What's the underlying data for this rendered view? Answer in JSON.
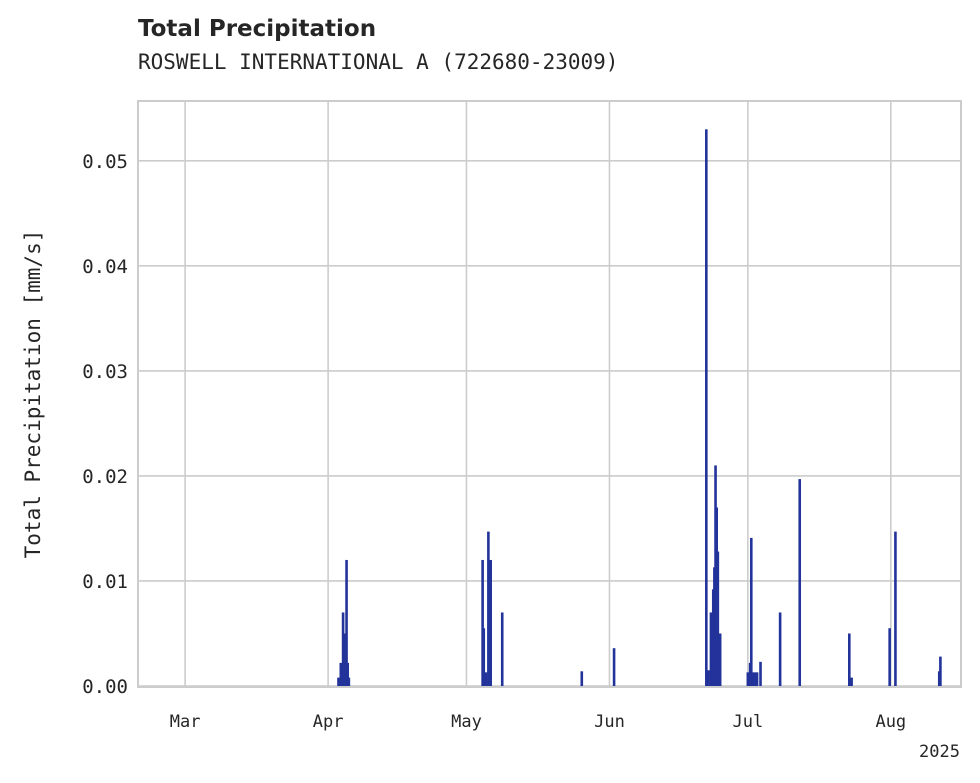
{
  "chart_data": {
    "type": "bar",
    "title": "Total Precipitation",
    "subtitle": "ROSWELL INTERNATIONAL A (722680-23009)",
    "ylabel": "Total Precipitation [mm/s]",
    "xlabel": "",
    "year_label": "2025",
    "ylim": [
      0,
      0.0556
    ],
    "xlim": [
      "2025-02-19",
      "2025-08-16"
    ],
    "yticks": [
      {
        "value": 0.0,
        "label": "0.00"
      },
      {
        "value": 0.01,
        "label": "0.01"
      },
      {
        "value": 0.02,
        "label": "0.02"
      },
      {
        "value": 0.03,
        "label": "0.03"
      },
      {
        "value": 0.04,
        "label": "0.04"
      },
      {
        "value": 0.05,
        "label": "0.05"
      }
    ],
    "xticks": [
      {
        "date": "2025-03-01",
        "label": "Mar"
      },
      {
        "date": "2025-04-01",
        "label": "Apr"
      },
      {
        "date": "2025-05-01",
        "label": "May"
      },
      {
        "date": "2025-06-01",
        "label": "Jun"
      },
      {
        "date": "2025-07-01",
        "label": "Jul"
      },
      {
        "date": "2025-08-01",
        "label": "Aug"
      }
    ],
    "grid": true,
    "color": "#22339a",
    "bars": [
      {
        "t": "2025-04-03T06:00",
        "v": 0.0008
      },
      {
        "t": "2025-04-03T18:00",
        "v": 0.0022
      },
      {
        "t": "2025-04-04T06:00",
        "v": 0.007
      },
      {
        "t": "2025-04-04T12:00",
        "v": 0.005
      },
      {
        "t": "2025-04-04T18:00",
        "v": 0.0022
      },
      {
        "t": "2025-04-05T00:00",
        "v": 0.012
      },
      {
        "t": "2025-04-05T06:00",
        "v": 0.0022
      },
      {
        "t": "2025-04-05T12:00",
        "v": 0.0008
      },
      {
        "t": "2025-05-04T12:00",
        "v": 0.012
      },
      {
        "t": "2025-05-04T18:00",
        "v": 0.0055
      },
      {
        "t": "2025-05-05T06:00",
        "v": 0.0013
      },
      {
        "t": "2025-05-05T18:00",
        "v": 0.0147
      },
      {
        "t": "2025-05-06T06:00",
        "v": 0.012
      },
      {
        "t": "2025-05-08T18:00",
        "v": 0.007
      },
      {
        "t": "2025-05-26T00:00",
        "v": 0.0014
      },
      {
        "t": "2025-06-02T00:00",
        "v": 0.0036
      },
      {
        "t": "2025-06-22T00:00",
        "v": 0.053
      },
      {
        "t": "2025-06-22T12:00",
        "v": 0.0015
      },
      {
        "t": "2025-06-23T00:00",
        "v": 0.007
      },
      {
        "t": "2025-06-23T12:00",
        "v": 0.0092
      },
      {
        "t": "2025-06-23T18:00",
        "v": 0.0113
      },
      {
        "t": "2025-06-24T00:00",
        "v": 0.021
      },
      {
        "t": "2025-06-24T06:00",
        "v": 0.017
      },
      {
        "t": "2025-06-24T12:00",
        "v": 0.0128
      },
      {
        "t": "2025-06-25T00:00",
        "v": 0.005
      },
      {
        "t": "2025-07-01T00:00",
        "v": 0.0013
      },
      {
        "t": "2025-07-01T12:00",
        "v": 0.0022
      },
      {
        "t": "2025-07-01T18:00",
        "v": 0.0141
      },
      {
        "t": "2025-07-02T00:00",
        "v": 0.0013
      },
      {
        "t": "2025-07-02T12:00",
        "v": 0.0013
      },
      {
        "t": "2025-07-03T00:00",
        "v": 0.0013
      },
      {
        "t": "2025-07-03T18:00",
        "v": 0.0023
      },
      {
        "t": "2025-07-08T00:00",
        "v": 0.007
      },
      {
        "t": "2025-07-12T06:00",
        "v": 0.0197
      },
      {
        "t": "2025-07-23T00:00",
        "v": 0.005
      },
      {
        "t": "2025-07-23T12:00",
        "v": 0.0008
      },
      {
        "t": "2025-07-31T18:00",
        "v": 0.0055
      },
      {
        "t": "2025-08-02T00:00",
        "v": 0.0147
      },
      {
        "t": "2025-08-11T12:00",
        "v": 0.0014
      },
      {
        "t": "2025-08-11T18:00",
        "v": 0.0028
      }
    ]
  }
}
